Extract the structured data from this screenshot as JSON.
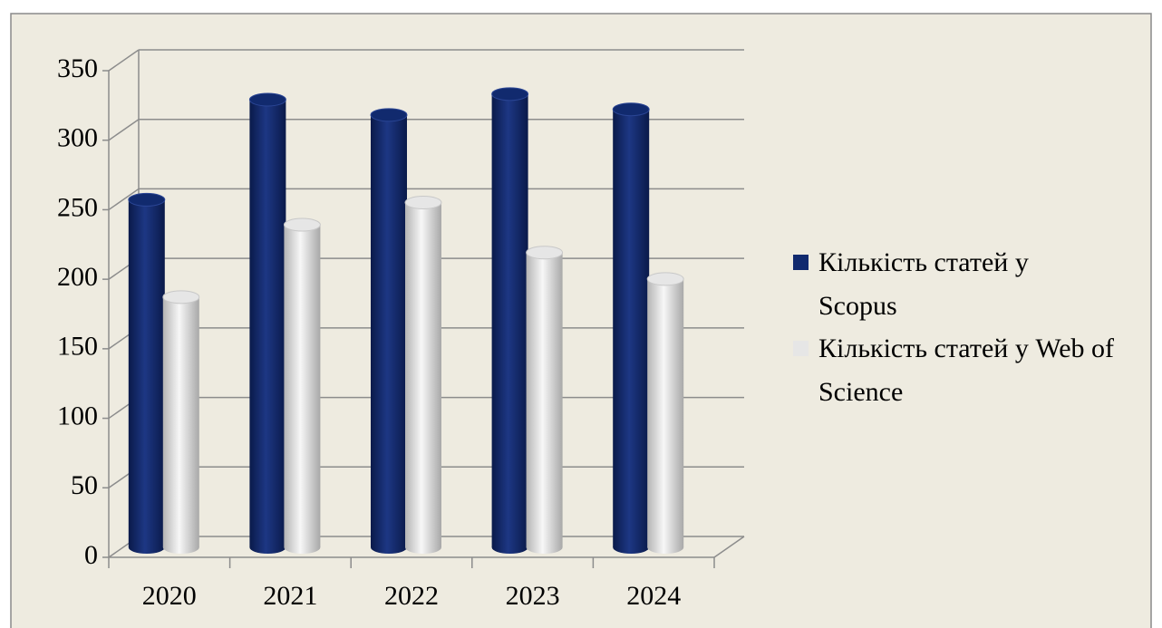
{
  "chart_data": {
    "type": "bar3d",
    "categories": [
      "2020",
      "2021",
      "2022",
      "2023",
      "2024"
    ],
    "series": [
      {
        "name": "Кількість статей у Scopus",
        "color": "#112a6e",
        "values": [
          250,
          322,
          311,
          326,
          315
        ]
      },
      {
        "name": "Кількість статей у Web of Science",
        "color": "#e6e6e6",
        "values": [
          180,
          232,
          248,
          212,
          193
        ]
      }
    ],
    "ylim": [
      0,
      350
    ],
    "yticks": [
      0,
      50,
      100,
      150,
      200,
      250,
      300,
      350
    ],
    "grid": true,
    "legend": "right"
  }
}
